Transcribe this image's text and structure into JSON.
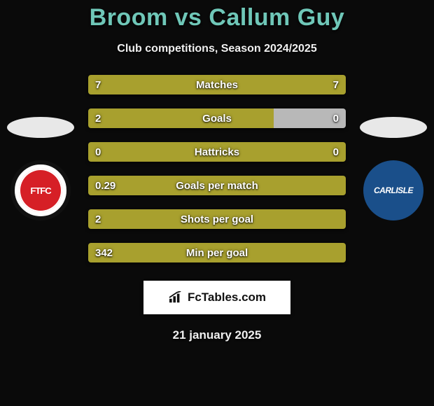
{
  "title": "Broom vs Callum Guy",
  "subtitle": "Club competitions, Season 2024/2025",
  "date": "21 january 2025",
  "brand": "FcTables.com",
  "badges": {
    "left_text": "FTFC",
    "right_text": "CARLISLE"
  },
  "colors": {
    "accent_left": "#a8a02e",
    "accent_right": "#a8a02e",
    "neutral_right": "#b8b8b8",
    "title": "#6fc7b8",
    "badge_left_bg": "#d61f26",
    "badge_right_bg": "#1a4f8a"
  },
  "stats": [
    {
      "label": "Matches",
      "left_val": "7",
      "right_val": "7",
      "left_pct": 50,
      "right_pct": 50,
      "left_color": "#a8a02e",
      "right_color": "#a8a02e"
    },
    {
      "label": "Goals",
      "left_val": "2",
      "right_val": "0",
      "left_pct": 72,
      "right_pct": 28,
      "left_color": "#a8a02e",
      "right_color": "#b8b8b8"
    },
    {
      "label": "Hattricks",
      "left_val": "0",
      "right_val": "0",
      "left_pct": 50,
      "right_pct": 50,
      "left_color": "#a8a02e",
      "right_color": "#a8a02e"
    },
    {
      "label": "Goals per match",
      "left_val": "0.29",
      "right_val": "",
      "left_pct": 100,
      "right_pct": 0,
      "left_color": "#a8a02e",
      "right_color": "#a8a02e"
    },
    {
      "label": "Shots per goal",
      "left_val": "2",
      "right_val": "",
      "left_pct": 100,
      "right_pct": 0,
      "left_color": "#a8a02e",
      "right_color": "#a8a02e"
    },
    {
      "label": "Min per goal",
      "left_val": "342",
      "right_val": "",
      "left_pct": 100,
      "right_pct": 0,
      "left_color": "#a8a02e",
      "right_color": "#a8a02e"
    }
  ]
}
